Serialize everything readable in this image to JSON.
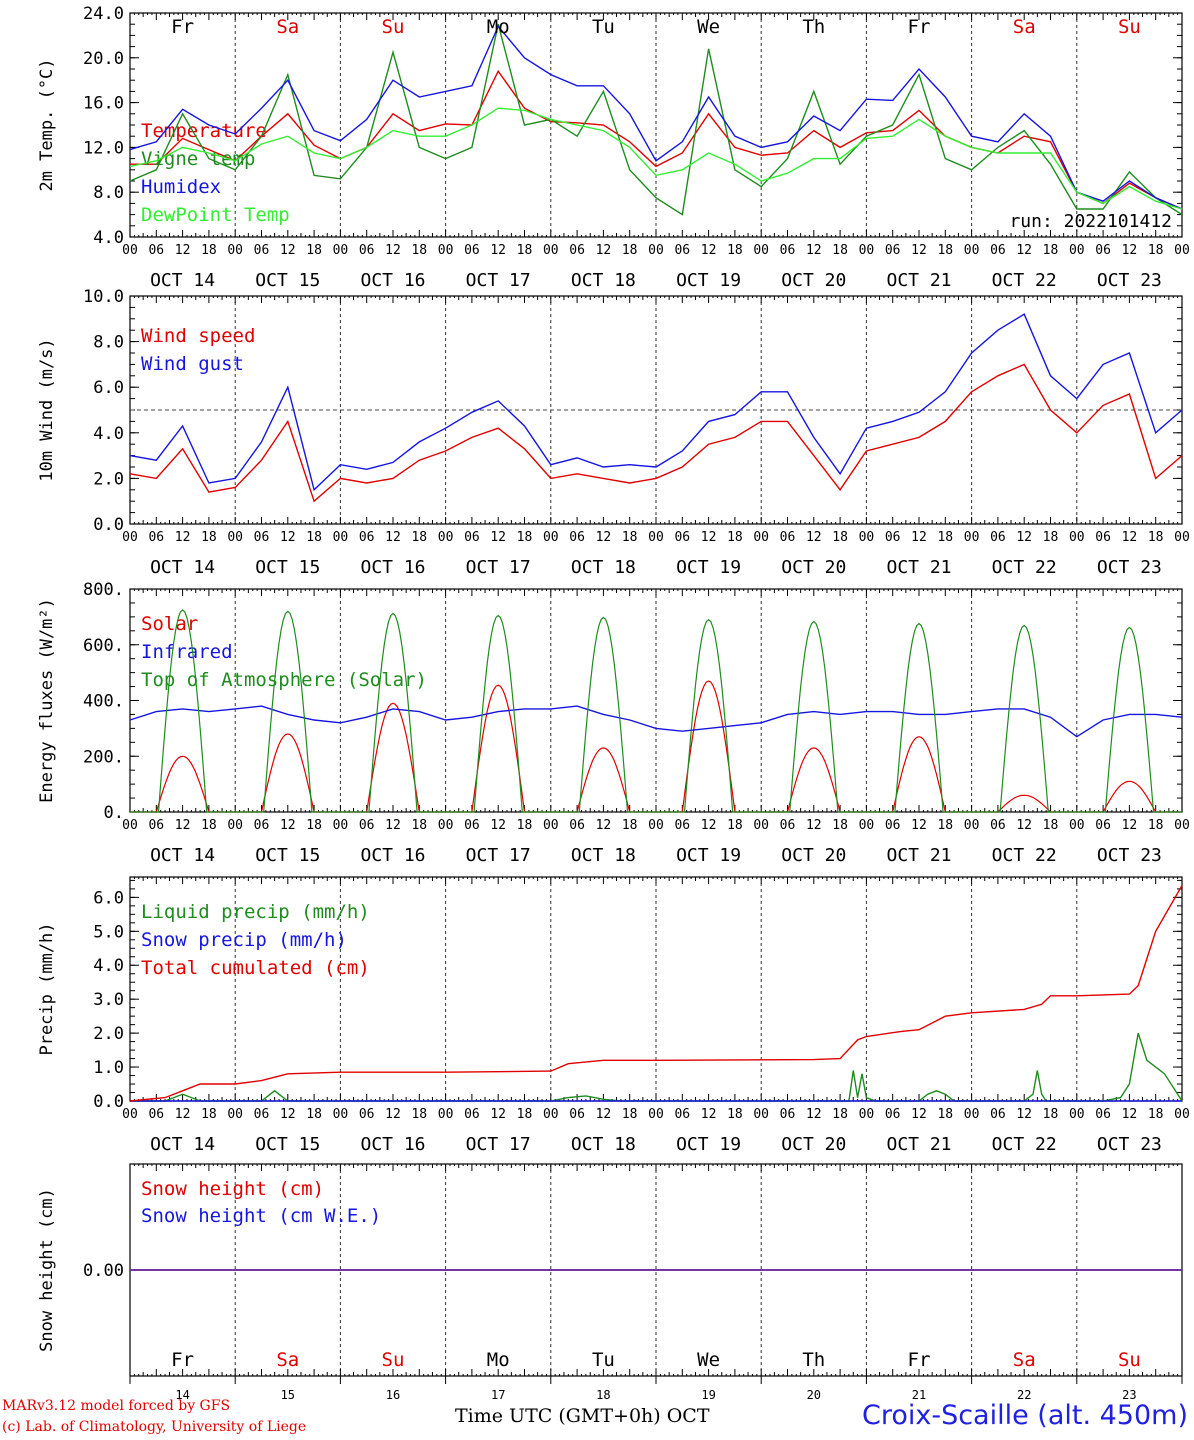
{
  "colors": {
    "red": "#e00000",
    "green": "#1e8c1e",
    "blue": "#1515e0",
    "lightgreen": "#33ee33",
    "purple": "#7030a0",
    "black": "#000000"
  },
  "days": {
    "weekdays": [
      "Fr",
      "Sa",
      "Su",
      "Mo",
      "Tu",
      "We",
      "Th",
      "Fr",
      "Sa",
      "Su"
    ],
    "weekday_colors": [
      "black",
      "red",
      "red",
      "black",
      "black",
      "black",
      "black",
      "black",
      "red",
      "red"
    ],
    "dates": [
      "OCT 14",
      "OCT 15",
      "OCT 16",
      "OCT 17",
      "OCT 18",
      "OCT 19",
      "OCT 20",
      "OCT 21",
      "OCT 22",
      "OCT 23"
    ],
    "day_numbers": [
      "14",
      "15",
      "16",
      "17",
      "18",
      "19",
      "20",
      "21",
      "22",
      "23"
    ],
    "hour_ticks": [
      "00",
      "06",
      "12",
      "18"
    ],
    "final_hour": "00"
  },
  "footer": {
    "model": "MARv3.12 model forced by GFS",
    "copyright": "(c) Lab. of Climatology, University of Liege",
    "time_label": "Time UTC (GMT+0h) OCT",
    "station": "Croix-Scaille (alt. 450m)"
  },
  "chart_data": [
    {
      "type": "line",
      "ylabel": "2m Temp. (°C)",
      "ylim": [
        4,
        24
      ],
      "yticks": [
        "4.0",
        "8.0",
        "12.0",
        "16.0",
        "20.0",
        "24.0"
      ],
      "run_label": "run: 2022101412",
      "x_unit": "hours since OCT 14 00 UTC",
      "series": [
        {
          "name": "Temperature",
          "color": "red",
          "x": [
            0,
            6,
            12,
            18,
            24,
            30,
            36,
            42,
            48,
            54,
            60,
            66,
            72,
            78,
            84,
            90,
            96,
            102,
            108,
            114,
            120,
            126,
            132,
            138,
            144,
            150,
            156,
            162,
            168,
            174,
            180,
            186,
            192,
            198,
            204,
            210,
            216,
            222,
            228,
            234,
            240
          ],
          "y": [
            10.5,
            10.5,
            12.8,
            11.8,
            10.8,
            13,
            15,
            12.2,
            11,
            12,
            15,
            13.5,
            14.1,
            14,
            18.8,
            15.5,
            14.3,
            14.2,
            14,
            12.5,
            10.3,
            11.5,
            15,
            12,
            11.3,
            11.5,
            13.5,
            12,
            13.3,
            13.5,
            15.3,
            13,
            12,
            11.5,
            13,
            12.5,
            8,
            7,
            8.8,
            7.5,
            6.5
          ]
        },
        {
          "name": "Vigne temp",
          "color": "green",
          "x": [
            0,
            6,
            12,
            18,
            24,
            30,
            36,
            42,
            48,
            54,
            60,
            66,
            72,
            78,
            84,
            90,
            96,
            102,
            108,
            114,
            120,
            126,
            132,
            138,
            144,
            150,
            156,
            162,
            168,
            174,
            180,
            186,
            192,
            198,
            204,
            210,
            216,
            222,
            228,
            234,
            240
          ],
          "y": [
            9,
            10,
            15,
            11,
            10,
            13,
            18.5,
            9.5,
            9.2,
            12,
            20.5,
            12,
            11,
            12,
            23,
            14,
            14.5,
            13,
            17,
            10,
            7.5,
            6,
            20.8,
            10,
            8.5,
            11,
            17,
            10.5,
            13,
            14,
            18.5,
            11,
            10,
            12,
            13.5,
            10.5,
            6.5,
            6.5,
            9.8,
            7.5,
            6
          ]
        },
        {
          "name": "Humidex",
          "color": "blue",
          "x": [
            0,
            6,
            12,
            18,
            24,
            30,
            36,
            42,
            48,
            54,
            60,
            66,
            72,
            78,
            84,
            90,
            96,
            102,
            108,
            114,
            120,
            126,
            132,
            138,
            144,
            150,
            156,
            162,
            168,
            174,
            180,
            186,
            192,
            198,
            204,
            210,
            216,
            222,
            228,
            234,
            240
          ],
          "y": [
            11.8,
            12.5,
            15.4,
            14,
            13.2,
            15.5,
            18,
            13.5,
            12.6,
            14.5,
            18,
            16.5,
            17,
            17.5,
            22.8,
            20,
            18.5,
            17.5,
            17.5,
            15,
            10.8,
            12.5,
            16.5,
            13,
            12,
            12.5,
            14.8,
            13.5,
            16.3,
            16.2,
            19,
            16.5,
            13,
            12.5,
            15,
            13,
            8,
            7.2,
            9,
            7.5,
            6.5
          ]
        },
        {
          "name": "DewPoint Temp",
          "color": "lightgreen",
          "x": [
            0,
            6,
            12,
            18,
            24,
            30,
            36,
            42,
            48,
            54,
            60,
            66,
            72,
            78,
            84,
            90,
            96,
            102,
            108,
            114,
            120,
            126,
            132,
            138,
            144,
            150,
            156,
            162,
            168,
            174,
            180,
            186,
            192,
            198,
            204,
            210,
            216,
            222,
            228,
            234,
            240
          ],
          "y": [
            10.3,
            10.8,
            12,
            11.5,
            10.8,
            12.3,
            13,
            11.5,
            11,
            12,
            13.5,
            13,
            13,
            14,
            15.5,
            15.3,
            14.5,
            14,
            13.5,
            12,
            9.5,
            10,
            11.5,
            10.5,
            9,
            9.7,
            11,
            11,
            12.8,
            13,
            14.5,
            13,
            12,
            11.5,
            11.5,
            11.5,
            8,
            7,
            8.5,
            7.2,
            6.5
          ]
        }
      ]
    },
    {
      "type": "line",
      "ylabel": "10m Wind (m/s)",
      "ylim": [
        0,
        10
      ],
      "yticks": [
        "0.0",
        "2.0",
        "4.0",
        "6.0",
        "8.0",
        "10.0"
      ],
      "reference_line": 5,
      "series": [
        {
          "name": "Wind speed",
          "color": "red",
          "x": [
            0,
            6,
            12,
            18,
            24,
            30,
            36,
            42,
            48,
            54,
            60,
            66,
            72,
            78,
            84,
            90,
            96,
            102,
            108,
            114,
            120,
            126,
            132,
            138,
            144,
            150,
            156,
            162,
            168,
            174,
            180,
            186,
            192,
            198,
            204,
            210,
            216,
            222,
            228,
            234,
            240
          ],
          "y": [
            2.2,
            2,
            3.3,
            1.4,
            1.6,
            2.8,
            4.5,
            1,
            2,
            1.8,
            2,
            2.8,
            3.2,
            3.8,
            4.2,
            3.3,
            2,
            2.2,
            2,
            1.8,
            2,
            2.5,
            3.5,
            3.8,
            4.5,
            4.5,
            3,
            1.5,
            3.2,
            3.5,
            3.8,
            4.5,
            5.8,
            6.5,
            7,
            5,
            4,
            5.2,
            5.7,
            2,
            3
          ]
        },
        {
          "name": "Wind gust",
          "color": "blue",
          "x": [
            0,
            6,
            12,
            18,
            24,
            30,
            36,
            42,
            48,
            54,
            60,
            66,
            72,
            78,
            84,
            90,
            96,
            102,
            108,
            114,
            120,
            126,
            132,
            138,
            144,
            150,
            156,
            162,
            168,
            174,
            180,
            186,
            192,
            198,
            204,
            210,
            216,
            222,
            228,
            234,
            240
          ],
          "y": [
            3,
            2.8,
            4.3,
            1.8,
            2,
            3.6,
            6,
            1.5,
            2.6,
            2.4,
            2.7,
            3.6,
            4.2,
            4.9,
            5.4,
            4.3,
            2.6,
            2.9,
            2.5,
            2.6,
            2.5,
            3.2,
            4.5,
            4.8,
            5.8,
            5.8,
            3.8,
            2.2,
            4.2,
            4.5,
            4.9,
            5.8,
            7.5,
            8.5,
            9.2,
            6.5,
            5.5,
            7,
            7.5,
            4,
            5
          ]
        }
      ]
    },
    {
      "type": "line",
      "ylabel": "Energy fluxes (W/m²)",
      "ylim": [
        0,
        800
      ],
      "yticks": [
        "0.",
        "200.",
        "400.",
        "600.",
        "800."
      ],
      "series": [
        {
          "name": "Solar",
          "color": "red",
          "peak_hour": 12,
          "halfwidth": 6,
          "daily_peaks": [
            200,
            280,
            390,
            455,
            230,
            470,
            230,
            270,
            60,
            110
          ]
        },
        {
          "name": "Infrared",
          "color": "blue",
          "x": [
            0,
            6,
            12,
            18,
            24,
            30,
            36,
            42,
            48,
            54,
            60,
            66,
            72,
            78,
            84,
            90,
            96,
            102,
            108,
            114,
            120,
            126,
            132,
            138,
            144,
            150,
            156,
            162,
            168,
            174,
            180,
            186,
            192,
            198,
            204,
            210,
            216,
            222,
            228,
            234,
            240
          ],
          "y": [
            330,
            360,
            370,
            360,
            370,
            380,
            350,
            330,
            320,
            340,
            370,
            360,
            330,
            340,
            360,
            370,
            370,
            380,
            350,
            330,
            300,
            290,
            300,
            310,
            320,
            350,
            360,
            350,
            360,
            360,
            350,
            350,
            360,
            370,
            370,
            340,
            270,
            330,
            350,
            350,
            340
          ]
        },
        {
          "name": "Top of Atmosphere (Solar)",
          "color": "green",
          "peak_hour": 12,
          "halfwidth": 5.5,
          "daily_peaks": [
            725,
            720,
            712,
            705,
            698,
            690,
            683,
            676,
            669,
            662
          ]
        }
      ]
    },
    {
      "type": "line",
      "ylabel": "Precip (mm/h)",
      "ylim": [
        0,
        6.6
      ],
      "yticks": [
        "0.0",
        "1.0",
        "2.0",
        "3.0",
        "4.0",
        "5.0",
        "6.0"
      ],
      "series": [
        {
          "name": "Liquid precip (mm/h)",
          "color": "green",
          "x": [
            0,
            8,
            10,
            12,
            14,
            16,
            30,
            33,
            36,
            96,
            100,
            104,
            108,
            112,
            164,
            165,
            166,
            167,
            168,
            169,
            170,
            180,
            182,
            184,
            186,
            188,
            204,
            206,
            207,
            208,
            209,
            214,
            222,
            226,
            228,
            230,
            232,
            234,
            236,
            240
          ],
          "y": [
            0,
            0,
            0.1,
            0.2,
            0.1,
            0,
            0,
            0.3,
            0,
            0,
            0.1,
            0.15,
            0.05,
            0,
            0,
            0.9,
            0.1,
            0.8,
            0.1,
            0.05,
            0,
            0,
            0.2,
            0.3,
            0.2,
            0,
            0,
            0.2,
            0.9,
            0.2,
            0,
            0,
            0,
            0.1,
            0.5,
            2,
            1.2,
            1,
            0.8,
            0
          ]
        },
        {
          "name": "Snow precip (mm/h)",
          "color": "blue",
          "x": [
            0,
            240
          ],
          "y": [
            0,
            0
          ]
        },
        {
          "name": "Total cumulated (cm)",
          "color": "red",
          "x": [
            0,
            8,
            12,
            16,
            24,
            30,
            36,
            48,
            72,
            96,
            100,
            108,
            120,
            156,
            162,
            166,
            168,
            176,
            180,
            186,
            192,
            204,
            208,
            210,
            216,
            228,
            230,
            234,
            240
          ],
          "y": [
            0,
            0.1,
            0.3,
            0.5,
            0.5,
            0.6,
            0.8,
            0.85,
            0.85,
            0.88,
            1.1,
            1.2,
            1.2,
            1.22,
            1.25,
            1.8,
            1.9,
            2.05,
            2.1,
            2.5,
            2.6,
            2.7,
            2.85,
            3.1,
            3.1,
            3.15,
            3.4,
            5,
            6.35
          ]
        }
      ]
    },
    {
      "type": "line",
      "ylabel": "Snow height (cm)",
      "ylim": [
        -1,
        1
      ],
      "yticks": [
        "0.00"
      ],
      "series": [
        {
          "name": "Snow height (cm)",
          "color": "red",
          "x": [
            0,
            240
          ],
          "y": [
            0,
            0
          ]
        },
        {
          "name": "Snow height (cm W.E.)",
          "color": "blue",
          "x": [
            0,
            240
          ],
          "y": [
            0,
            0
          ]
        }
      ]
    }
  ]
}
